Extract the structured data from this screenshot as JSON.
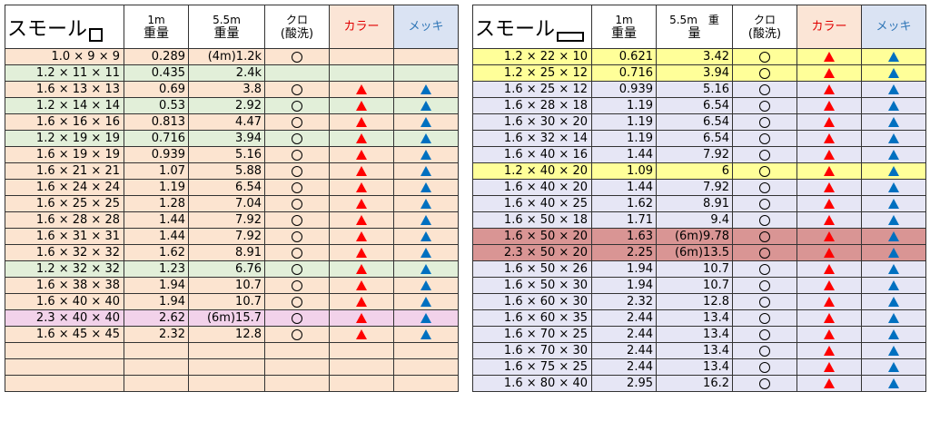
{
  "left_table": {
    "headers": {
      "title": "スモール",
      "w1m_a": "1m",
      "w1m_b": "重量",
      "w55_a": "5.5m",
      "w55_b": "重量",
      "kuro_a": "クロ",
      "kuro_b": "(酸洗)",
      "color": "カラー",
      "mekki": "メッキ"
    },
    "rows": [
      {
        "size": "1.0 × 9 × 9",
        "w1m": "0.289",
        "w55": "(4m)1.2k",
        "kuro": "○",
        "color": "",
        "mekki": "",
        "bg": "tan"
      },
      {
        "size": "1.2 × 11 × 11",
        "w1m": "0.435",
        "w55": "2.4k",
        "kuro": "",
        "color": "",
        "mekki": "",
        "bg": "green"
      },
      {
        "size": "1.6 × 13 × 13",
        "w1m": "0.69",
        "w55": "3.8",
        "kuro": "○",
        "color": "▲",
        "mekki": "▲",
        "bg": "tan"
      },
      {
        "size": "1.2 × 14 × 14",
        "w1m": "0.53",
        "w55": "2.92",
        "kuro": "○",
        "color": "▲",
        "mekki": "▲",
        "bg": "green"
      },
      {
        "size": "1.6 × 16 × 16",
        "w1m": "0.813",
        "w55": "4.47",
        "kuro": "○",
        "color": "▲",
        "mekki": "▲",
        "bg": "tan"
      },
      {
        "size": "1.2 × 19 × 19",
        "w1m": "0.716",
        "w55": "3.94",
        "kuro": "○",
        "color": "▲",
        "mekki": "▲",
        "bg": "green"
      },
      {
        "size": "1.6 × 19 × 19",
        "w1m": "0.939",
        "w55": "5.16",
        "kuro": "○",
        "color": "▲",
        "mekki": "▲",
        "bg": "tan"
      },
      {
        "size": "1.6 × 21 × 21",
        "w1m": "1.07",
        "w55": "5.88",
        "kuro": "○",
        "color": "▲",
        "mekki": "▲",
        "bg": "tan"
      },
      {
        "size": "1.6 × 24 × 24",
        "w1m": "1.19",
        "w55": "6.54",
        "kuro": "○",
        "color": "▲",
        "mekki": "▲",
        "bg": "tan"
      },
      {
        "size": "1.6 × 25 × 25",
        "w1m": "1.28",
        "w55": "7.04",
        "kuro": "○",
        "color": "▲",
        "mekki": "▲",
        "bg": "tan"
      },
      {
        "size": "1.6 × 28 × 28",
        "w1m": "1.44",
        "w55": "7.92",
        "kuro": "○",
        "color": "▲",
        "mekki": "▲",
        "bg": "tan"
      },
      {
        "size": "1.6 × 31 × 31",
        "w1m": "1.44",
        "w55": "7.92",
        "kuro": "○",
        "color": "▲",
        "mekki": "▲",
        "bg": "tan"
      },
      {
        "size": "1.6 × 32 × 32",
        "w1m": "1.62",
        "w55": "8.91",
        "kuro": "○",
        "color": "▲",
        "mekki": "▲",
        "bg": "tan"
      },
      {
        "size": "1.2 × 32 × 32",
        "w1m": "1.23",
        "w55": "6.76",
        "kuro": "○",
        "color": "▲",
        "mekki": "▲",
        "bg": "green"
      },
      {
        "size": "1.6 × 38 × 38",
        "w1m": "1.94",
        "w55": "10.7",
        "kuro": "○",
        "color": "▲",
        "mekki": "▲",
        "bg": "tan"
      },
      {
        "size": "1.6 × 40 × 40",
        "w1m": "1.94",
        "w55": "10.7",
        "kuro": "○",
        "color": "▲",
        "mekki": "▲",
        "bg": "tan"
      },
      {
        "size": "2.3 × 40 × 40",
        "w1m": "2.62",
        "w55": "(6m)15.7",
        "kuro": "○",
        "color": "▲",
        "mekki": "▲",
        "bg": "pink"
      },
      {
        "size": "1.6 × 45 × 45",
        "w1m": "2.32",
        "w55": "12.8",
        "kuro": "○",
        "color": "▲",
        "mekki": "▲",
        "bg": "tan"
      },
      {
        "size": "",
        "w1m": "",
        "w55": "",
        "kuro": "",
        "color": "",
        "mekki": "",
        "bg": "tan"
      },
      {
        "size": "",
        "w1m": "",
        "w55": "",
        "kuro": "",
        "color": "",
        "mekki": "",
        "bg": "tan"
      },
      {
        "size": "",
        "w1m": "",
        "w55": "",
        "kuro": "",
        "color": "",
        "mekki": "",
        "bg": "tan"
      }
    ]
  },
  "right_table": {
    "headers": {
      "title": "スモール",
      "w1m_a": "1m",
      "w1m_b": "重量",
      "w55_a": "5.5m　重",
      "w55_b": "量",
      "kuro_a": "クロ",
      "kuro_b": "(酸洗)",
      "color": "カラー",
      "mekki": "メッキ"
    },
    "rows": [
      {
        "size": "1.2 × 22 × 10",
        "w1m": "0.621",
        "w55": "3.42",
        "kuro": "○",
        "color": "▲",
        "mekki": "▲",
        "bg": "yellow"
      },
      {
        "size": "1.2 × 25 × 12",
        "w1m": "0.716",
        "w55": "3.94",
        "kuro": "○",
        "color": "▲",
        "mekki": "▲",
        "bg": "yellow"
      },
      {
        "size": "1.6 × 25 × 12",
        "w1m": "0.939",
        "w55": "5.16",
        "kuro": "○",
        "color": "▲",
        "mekki": "▲",
        "bg": "lav"
      },
      {
        "size": "1.6 × 28 × 18",
        "w1m": "1.19",
        "w55": "6.54",
        "kuro": "○",
        "color": "▲",
        "mekki": "▲",
        "bg": "lav"
      },
      {
        "size": "1.6 × 30 × 20",
        "w1m": "1.19",
        "w55": "6.54",
        "kuro": "○",
        "color": "▲",
        "mekki": "▲",
        "bg": "lav"
      },
      {
        "size": "1.6 × 32 × 14",
        "w1m": "1.19",
        "w55": "6.54",
        "kuro": "○",
        "color": "▲",
        "mekki": "▲",
        "bg": "lav"
      },
      {
        "size": "1.6 × 40 × 16",
        "w1m": "1.44",
        "w55": "7.92",
        "kuro": "○",
        "color": "▲",
        "mekki": "▲",
        "bg": "lav"
      },
      {
        "size": "1.2 × 40 × 20",
        "w1m": "1.09",
        "w55": "6",
        "kuro": "○",
        "color": "▲",
        "mekki": "▲",
        "bg": "yellow"
      },
      {
        "size": "1.6 × 40 × 20",
        "w1m": "1.44",
        "w55": "7.92",
        "kuro": "○",
        "color": "▲",
        "mekki": "▲",
        "bg": "lav"
      },
      {
        "size": "1.6 × 40 × 25",
        "w1m": "1.62",
        "w55": "8.91",
        "kuro": "○",
        "color": "▲",
        "mekki": "▲",
        "bg": "lav"
      },
      {
        "size": "1.6 × 50 × 18",
        "w1m": "1.71",
        "w55": "9.4",
        "kuro": "○",
        "color": "▲",
        "mekki": "▲",
        "bg": "lav"
      },
      {
        "size": "1.6 × 50 × 20",
        "w1m": "1.63",
        "w55": "(6m)9.78",
        "kuro": "○",
        "color": "▲",
        "mekki": "▲",
        "bg": "red"
      },
      {
        "size": "2.3 × 50 × 20",
        "w1m": "2.25",
        "w55": "(6m)13.5",
        "kuro": "○",
        "color": "▲",
        "mekki": "▲",
        "bg": "red"
      },
      {
        "size": "1.6 × 50 × 26",
        "w1m": "1.94",
        "w55": "10.7",
        "kuro": "○",
        "color": "▲",
        "mekki": "▲",
        "bg": "lav"
      },
      {
        "size": "1.6 × 50 × 30",
        "w1m": "1.94",
        "w55": "10.7",
        "kuro": "○",
        "color": "▲",
        "mekki": "▲",
        "bg": "lav"
      },
      {
        "size": "1.6 × 60 × 30",
        "w1m": "2.32",
        "w55": "12.8",
        "kuro": "○",
        "color": "▲",
        "mekki": "▲",
        "bg": "lav"
      },
      {
        "size": "1.6 × 60 × 35",
        "w1m": "2.44",
        "w55": "13.4",
        "kuro": "○",
        "color": "▲",
        "mekki": "▲",
        "bg": "lav"
      },
      {
        "size": "1.6 × 70 × 25",
        "w1m": "2.44",
        "w55": "13.4",
        "kuro": "○",
        "color": "▲",
        "mekki": "▲",
        "bg": "lav"
      },
      {
        "size": "1.6 × 70 × 30",
        "w1m": "2.44",
        "w55": "13.4",
        "kuro": "○",
        "color": "▲",
        "mekki": "▲",
        "bg": "lav"
      },
      {
        "size": "1.6 × 75 × 25",
        "w1m": "2.44",
        "w55": "13.4",
        "kuro": "○",
        "color": "▲",
        "mekki": "▲",
        "bg": "lav"
      },
      {
        "size": "1.6 × 80 × 40",
        "w1m": "2.95",
        "w55": "16.2",
        "kuro": "○",
        "color": "▲",
        "mekki": "▲",
        "bg": "lav"
      }
    ]
  },
  "colors": {
    "tan": "#fce4d0",
    "green": "#e2efd9",
    "pink": "#f2d2ea",
    "yellow": "#ffff99",
    "lav": "#e6e6f5",
    "red": "#d99594",
    "triangle_red": "#ff0000",
    "triangle_blue": "#0070c0"
  }
}
